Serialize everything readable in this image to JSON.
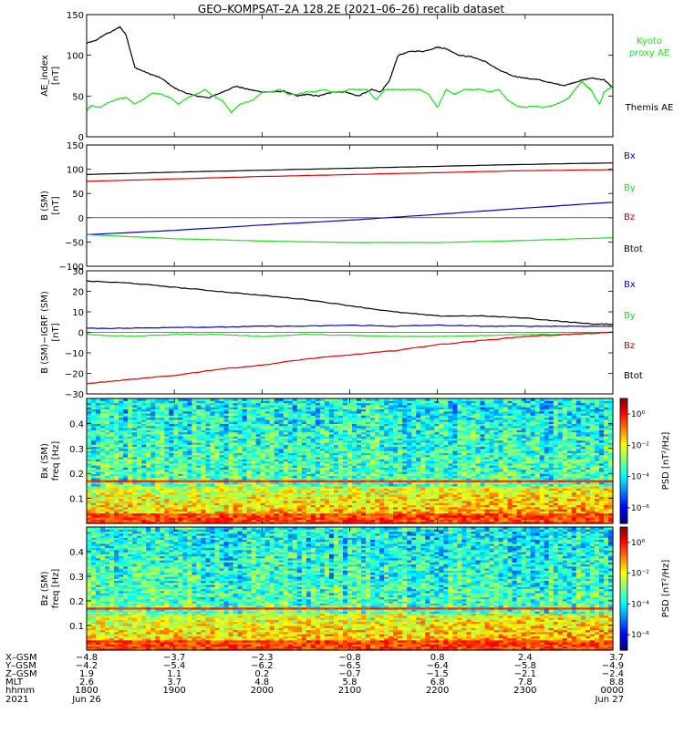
{
  "title": "GEO–KOMPSAT–2A 128.2E (2021–06–26) recalib dataset",
  "colors": {
    "black": "#000000",
    "red": "#e00000",
    "green": "#22dd22",
    "blue": "#0000cc",
    "legend_green": "#22dd22",
    "legend_blue": "#0000cc",
    "legend_red": "#cc0000"
  },
  "chart_data": [
    {
      "type": "line",
      "name": "ae_index",
      "ylabel": "AE_index",
      "yunit": "[nT]",
      "ylim": [
        0,
        150
      ],
      "yticks": [
        "0",
        "50",
        "100",
        "150"
      ],
      "legend": [
        "Kyoto proxy AE",
        "Themis AE"
      ],
      "series": [
        {
          "name": "Themis AE",
          "color": "#000000",
          "points": [
            [
              18.0,
              115
            ],
            [
              18.1,
              118
            ],
            [
              18.2,
              125
            ],
            [
              18.3,
              130
            ],
            [
              18.38,
              135
            ],
            [
              18.45,
              125
            ],
            [
              18.55,
              85
            ],
            [
              18.7,
              78
            ],
            [
              18.85,
              72
            ],
            [
              19.0,
              60
            ],
            [
              19.1,
              55
            ],
            [
              19.25,
              50
            ],
            [
              19.4,
              48
            ],
            [
              19.55,
              55
            ],
            [
              19.7,
              62
            ],
            [
              19.85,
              58
            ],
            [
              20.0,
              55
            ],
            [
              20.12,
              55
            ],
            [
              20.25,
              56
            ],
            [
              20.4,
              50
            ],
            [
              20.5,
              52
            ],
            [
              20.65,
              50
            ],
            [
              20.8,
              55
            ],
            [
              20.95,
              55
            ],
            [
              21.1,
              50
            ],
            [
              21.25,
              58
            ],
            [
              21.35,
              55
            ],
            [
              21.45,
              68
            ],
            [
              21.55,
              100
            ],
            [
              21.7,
              105
            ],
            [
              21.85,
              105
            ],
            [
              22.0,
              110
            ],
            [
              22.1,
              108
            ],
            [
              22.25,
              100
            ],
            [
              22.4,
              98
            ],
            [
              22.55,
              92
            ],
            [
              22.7,
              82
            ],
            [
              22.85,
              75
            ],
            [
              23.0,
              72
            ],
            [
              23.15,
              70
            ],
            [
              23.3,
              66
            ],
            [
              23.45,
              63
            ],
            [
              23.6,
              68
            ],
            [
              23.75,
              72
            ],
            [
              23.9,
              70
            ],
            [
              24.0,
              60
            ]
          ]
        },
        {
          "name": "Kyoto proxy AE",
          "color": "#22dd22",
          "points": [
            [
              18.0,
              32
            ],
            [
              18.05,
              38
            ],
            [
              18.15,
              36
            ],
            [
              18.25,
              42
            ],
            [
              18.35,
              46
            ],
            [
              18.45,
              48
            ],
            [
              18.55,
              40
            ],
            [
              18.65,
              46
            ],
            [
              18.75,
              54
            ],
            [
              18.85,
              52
            ],
            [
              18.95,
              48
            ],
            [
              19.05,
              40
            ],
            [
              19.15,
              48
            ],
            [
              19.25,
              52
            ],
            [
              19.35,
              58
            ],
            [
              19.45,
              50
            ],
            [
              19.55,
              44
            ],
            [
              19.65,
              30
            ],
            [
              19.75,
              40
            ],
            [
              19.9,
              45
            ],
            [
              20.0,
              55
            ],
            [
              20.1,
              55
            ],
            [
              20.2,
              58
            ],
            [
              20.3,
              52
            ],
            [
              20.4,
              52
            ],
            [
              20.5,
              55
            ],
            [
              20.6,
              55
            ],
            [
              20.7,
              58
            ],
            [
              20.8,
              55
            ],
            [
              20.9,
              55
            ],
            [
              21.0,
              58
            ],
            [
              21.1,
              58
            ],
            [
              21.2,
              58
            ],
            [
              21.3,
              45
            ],
            [
              21.4,
              58
            ],
            [
              21.5,
              58
            ],
            [
              21.6,
              58
            ],
            [
              21.7,
              58
            ],
            [
              21.8,
              58
            ],
            [
              21.9,
              52
            ],
            [
              22.0,
              36
            ],
            [
              22.1,
              58
            ],
            [
              22.2,
              52
            ],
            [
              22.3,
              58
            ],
            [
              22.4,
              58
            ],
            [
              22.5,
              58
            ],
            [
              22.6,
              55
            ],
            [
              22.7,
              58
            ],
            [
              22.8,
              45
            ],
            [
              22.9,
              38
            ],
            [
              23.0,
              36
            ],
            [
              23.1,
              38
            ],
            [
              23.2,
              36
            ],
            [
              23.3,
              38
            ],
            [
              23.4,
              42
            ],
            [
              23.5,
              48
            ],
            [
              23.55,
              55
            ],
            [
              23.6,
              62
            ],
            [
              23.65,
              68
            ],
            [
              23.7,
              62
            ],
            [
              23.75,
              58
            ],
            [
              23.8,
              48
            ],
            [
              23.85,
              40
            ],
            [
              23.9,
              55
            ],
            [
              24.0,
              62
            ]
          ]
        }
      ]
    },
    {
      "type": "line",
      "name": "b_sm",
      "ylabel": "B (SM)",
      "yunit": "[nT]",
      "ylim": [
        -100,
        150
      ],
      "yticks": [
        "−100",
        "−50",
        "0",
        "50",
        "100",
        "150"
      ],
      "legend": [
        "Bx",
        "By",
        "Bz",
        "Btot"
      ],
      "series": [
        {
          "name": "Btot",
          "color": "#000000",
          "points": [
            [
              18.0,
              89
            ],
            [
              19.0,
              94
            ],
            [
              20.0,
              98
            ],
            [
              21.0,
              102
            ],
            [
              22.0,
              106
            ],
            [
              23.0,
              110
            ],
            [
              24.0,
              113
            ]
          ]
        },
        {
          "name": "Bz",
          "color": "#e00000",
          "points": [
            [
              18.0,
              75
            ],
            [
              19.0,
              80
            ],
            [
              20.0,
              85
            ],
            [
              21.0,
              89
            ],
            [
              22.0,
              93
            ],
            [
              23.0,
              97
            ],
            [
              24.0,
              99
            ]
          ]
        },
        {
          "name": "Bx",
          "color": "#0000cc",
          "points": [
            [
              18.0,
              -35
            ],
            [
              19.0,
              -26
            ],
            [
              20.0,
              -15
            ],
            [
              21.0,
              -5
            ],
            [
              22.0,
              7
            ],
            [
              23.0,
              20
            ],
            [
              24.0,
              32
            ]
          ]
        },
        {
          "name": "By",
          "color": "#22dd22",
          "points": [
            [
              18.0,
              -35
            ],
            [
              19.0,
              -43
            ],
            [
              20.0,
              -48
            ],
            [
              21.0,
              -51
            ],
            [
              22.0,
              -51
            ],
            [
              23.0,
              -47
            ],
            [
              24.0,
              -41
            ]
          ]
        }
      ]
    },
    {
      "type": "line",
      "name": "b_minus_igrf",
      "ylabel": "B (SM)−IGRF (SM)",
      "yunit": "[nT]",
      "ylim": [
        -30,
        30
      ],
      "yticks": [
        "−30",
        "−20",
        "−10",
        "0",
        "10",
        "20",
        "30"
      ],
      "legend": [
        "Bx",
        "By",
        "Bz",
        "Btot"
      ],
      "series": [
        {
          "name": "Btot",
          "color": "#000000",
          "points": [
            [
              18.0,
              25
            ],
            [
              18.5,
              24
            ],
            [
              19.0,
              22
            ],
            [
              19.5,
              20
            ],
            [
              20.0,
              18
            ],
            [
              20.5,
              16
            ],
            [
              21.0,
              13
            ],
            [
              21.5,
              10
            ],
            [
              22.0,
              8
            ],
            [
              22.5,
              8
            ],
            [
              23.0,
              7
            ],
            [
              23.5,
              5
            ],
            [
              23.8,
              4
            ],
            [
              24.0,
              4
            ]
          ]
        },
        {
          "name": "Bx",
          "color": "#0000cc",
          "points": [
            [
              18.0,
              2
            ],
            [
              18.5,
              2
            ],
            [
              19.0,
              2.5
            ],
            [
              19.5,
              2.5
            ],
            [
              20.0,
              3
            ],
            [
              20.5,
              3
            ],
            [
              21.0,
              3.5
            ],
            [
              21.5,
              3
            ],
            [
              22.0,
              3.5
            ],
            [
              22.5,
              3
            ],
            [
              23.0,
              3
            ],
            [
              23.5,
              3
            ],
            [
              24.0,
              3
            ]
          ]
        },
        {
          "name": "By",
          "color": "#22dd22",
          "points": [
            [
              18.0,
              -1
            ],
            [
              18.5,
              -2
            ],
            [
              19.0,
              -1
            ],
            [
              19.5,
              -1
            ],
            [
              20.0,
              -2
            ],
            [
              20.5,
              -1
            ],
            [
              21.0,
              -1.5
            ],
            [
              21.5,
              -2
            ],
            [
              22.0,
              -2
            ],
            [
              22.5,
              -1.5
            ],
            [
              23.0,
              -1
            ],
            [
              23.5,
              -1
            ],
            [
              24.0,
              0
            ]
          ]
        },
        {
          "name": "Bz",
          "color": "#e00000",
          "points": [
            [
              18.0,
              -25
            ],
            [
              18.5,
              -23
            ],
            [
              19.0,
              -21
            ],
            [
              19.5,
              -18
            ],
            [
              20.0,
              -16
            ],
            [
              20.5,
              -13
            ],
            [
              21.0,
              -11
            ],
            [
              21.5,
              -9
            ],
            [
              22.0,
              -6
            ],
            [
              22.5,
              -4
            ],
            [
              23.0,
              -2
            ],
            [
              23.5,
              -1
            ],
            [
              24.0,
              0
            ]
          ]
        }
      ]
    },
    {
      "type": "heatmap",
      "name": "bx_spectrogram",
      "ylabel": "Bx (SM)",
      "yunit": "freq [Hz]",
      "ylim": [
        0,
        0.5
      ],
      "yticks": [
        "0.1",
        "0.2",
        "0.3",
        "0.4"
      ],
      "colorbar_label": "PSD [nT²/Hz]",
      "colorbar_ticks": [
        "10⁰",
        "10⁻²",
        "10⁻⁴",
        "10⁻⁶"
      ],
      "colorbar_exponents": [
        0,
        -2,
        -4,
        -6
      ],
      "colorbar_range": [
        -7,
        1
      ],
      "bright_line_hz": 0.167
    },
    {
      "type": "heatmap",
      "name": "bz_spectrogram",
      "ylabel": "Bz (SM)",
      "yunit": "freq [Hz]",
      "ylim": [
        0,
        0.5
      ],
      "yticks": [
        "0.1",
        "0.2",
        "0.3",
        "0.4"
      ],
      "colorbar_label": "PSD [nT²/Hz]",
      "colorbar_ticks": [
        "10⁰",
        "10⁻²",
        "10⁻⁴",
        "10⁻⁶"
      ],
      "colorbar_exponents": [
        0,
        -2,
        -4,
        -6
      ],
      "colorbar_range": [
        -7,
        1
      ],
      "bright_line_hz": 0.167
    }
  ],
  "xaxis": {
    "x_range_hours": [
      18.0,
      24.0
    ],
    "row_labels": [
      "X–GSM",
      "Y–GSM",
      "Z–GSM",
      "MLT",
      "hhmm",
      "2021"
    ],
    "columns": [
      {
        "hour": 18.0,
        "values": [
          "−4.8",
          "−4.2",
          "1.9",
          "2.6",
          "1800",
          "Jun 26"
        ]
      },
      {
        "hour": 19.0,
        "values": [
          "−3.7",
          "−5.4",
          "1.1",
          "3.7",
          "1900",
          ""
        ]
      },
      {
        "hour": 20.0,
        "values": [
          "−2.3",
          "−6.2",
          "0.2",
          "4.8",
          "2000",
          ""
        ]
      },
      {
        "hour": 21.0,
        "values": [
          "−0.8",
          "−6.5",
          "−0.7",
          "5.8",
          "2100",
          ""
        ]
      },
      {
        "hour": 22.0,
        "values": [
          "0.8",
          "−6.4",
          "−1.5",
          "6.8",
          "2200",
          ""
        ]
      },
      {
        "hour": 23.0,
        "values": [
          "2.4",
          "−5.8",
          "−2.1",
          "7.8",
          "2300",
          ""
        ]
      },
      {
        "hour": 24.0,
        "values": [
          "3.7",
          "−4.9",
          "−2.4",
          "8.8",
          "0000",
          "Jun 27"
        ]
      }
    ]
  }
}
